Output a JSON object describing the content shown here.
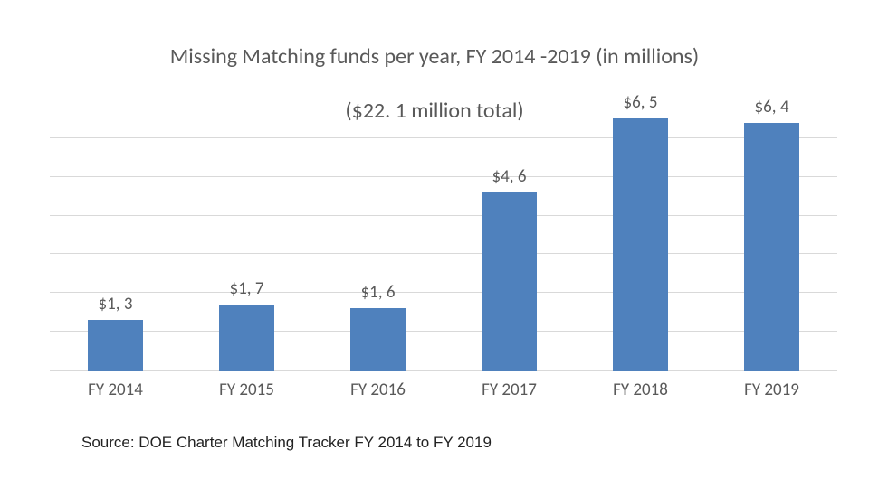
{
  "chart": {
    "type": "bar",
    "title_line1": "Missing Matching funds per year, FY 2014 -2019 (in millions)",
    "title_line2": "($22. 1 million total)",
    "title_fontsize": 24,
    "title_color": "#595959",
    "categories": [
      "FY 2014",
      "FY 2015",
      "FY 2016",
      "FY 2017",
      "FY 2018",
      "FY 2019"
    ],
    "values": [
      1.3,
      1.7,
      1.6,
      4.6,
      6.5,
      6.4
    ],
    "value_labels": [
      "$1, 3",
      "$1, 7",
      "$1, 6",
      "$4, 6",
      "$6, 5",
      "$6, 4"
    ],
    "bar_color": "#4f81bd",
    "background_color": "#ffffff",
    "grid_color": "#d9d9d9",
    "ylim": [
      0,
      7
    ],
    "ytick_step": 1,
    "bar_width_ratio": 0.42,
    "value_label_fontsize": 19,
    "value_label_color": "#595959",
    "xaxis_label_fontsize": 19,
    "xaxis_label_color": "#595959",
    "source": "Source: DOE Charter Matching Tracker FY 2014 to FY 2019",
    "source_fontsize": 17
  }
}
